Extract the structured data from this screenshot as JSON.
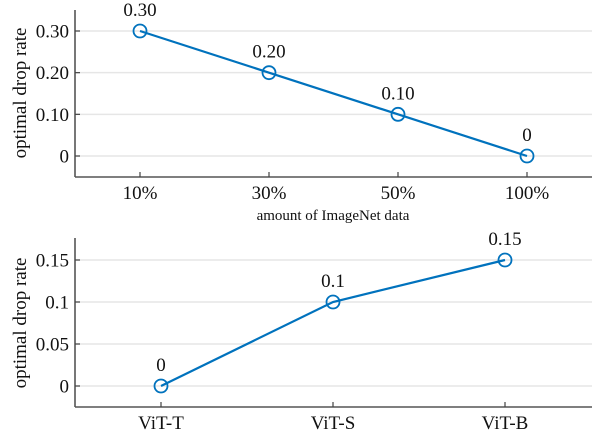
{
  "chart_data": [
    {
      "type": "line",
      "title": "",
      "xlabel": "amount of ImageNet data",
      "ylabel": "optimal drop rate",
      "categories": [
        "10%",
        "30%",
        "50%",
        "100%"
      ],
      "series": [
        {
          "name": "optimal drop rate",
          "values": [
            0.3,
            0.2,
            0.1,
            0
          ],
          "color": "#0072bd"
        }
      ],
      "data_labels": [
        "0.30",
        "0.20",
        "0.10",
        "0"
      ],
      "yticks": [
        0,
        0.1,
        0.2,
        0.3
      ],
      "ytick_labels": [
        "0",
        "0.10",
        "0.20",
        "0.30"
      ],
      "ylim": [
        -0.05,
        0.35
      ],
      "grid": true,
      "legend": "none"
    },
    {
      "type": "line",
      "title": "",
      "xlabel": "",
      "ylabel": "optimal drop rate",
      "categories": [
        "ViT-T",
        "ViT-S",
        "ViT-B"
      ],
      "series": [
        {
          "name": "optimal drop rate",
          "values": [
            0,
            0.1,
            0.15
          ],
          "color": "#0072bd"
        }
      ],
      "data_labels": [
        "0",
        "0.1",
        "0.15"
      ],
      "yticks": [
        0,
        0.05,
        0.1,
        0.15
      ],
      "ytick_labels": [
        "0",
        "0.05",
        "0.1",
        "0.15"
      ],
      "ylim": [
        -0.025,
        0.175
      ],
      "grid": true,
      "legend": "none"
    }
  ]
}
